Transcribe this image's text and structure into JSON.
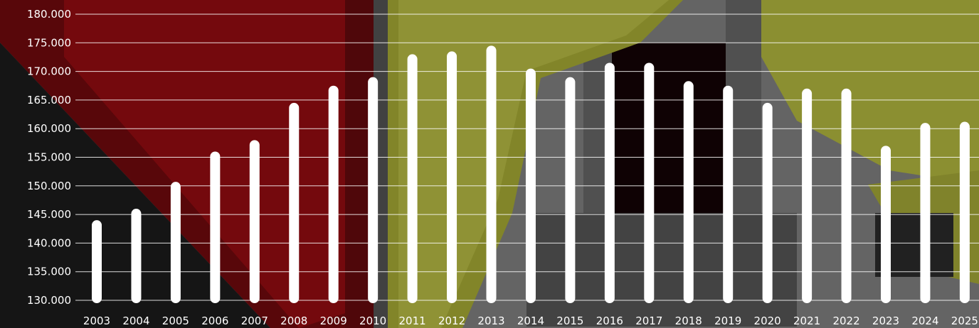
{
  "chart_data": {
    "type": "bar",
    "title": "",
    "xlabel": "",
    "ylabel": "",
    "categories": [
      "2003",
      "2004",
      "2005",
      "2006",
      "2007",
      "2008",
      "2009",
      "2010",
      "2011",
      "2012",
      "2013",
      "2014",
      "2015",
      "2016",
      "2017",
      "2018",
      "2019",
      "2020",
      "2021",
      "2022",
      "2023",
      "2024",
      "2025"
    ],
    "values": [
      144000,
      146000,
      150700,
      156000,
      158000,
      164500,
      167500,
      169000,
      173000,
      173500,
      174500,
      170500,
      169000,
      171500,
      171500,
      168300,
      167500,
      164500,
      167000,
      167000,
      157000,
      161000,
      161200
    ],
    "ylim": [
      130000,
      180000
    ],
    "yticks": [
      "130.000",
      "135.000",
      "140.000",
      "145.000",
      "150.000",
      "155.000",
      "160.000",
      "165.000",
      "170.000",
      "175.000",
      "180.000"
    ],
    "grid": true,
    "colors": {
      "bar": "#ffffff",
      "grid": "#ffffff",
      "text": "#ffffff"
    }
  }
}
